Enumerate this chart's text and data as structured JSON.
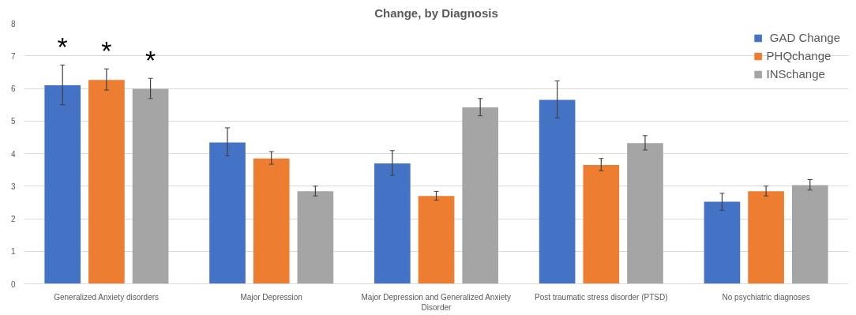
{
  "chart_data": {
    "type": "bar",
    "title": "Change, by Diagnosis",
    "categories": [
      "Generalized Anxiety disorders",
      "Major Depression",
      "Major Depression and Generalized Anxiety Disorder",
      "Post traumatic stress disorder (PTSD)",
      "No psychiatric diagnoses"
    ],
    "series": [
      {
        "name": " GAD Change",
        "color": "#4472c4",
        "values": [
          6.1,
          4.34,
          3.7,
          5.65,
          2.52
        ],
        "errors": [
          [
            5.5,
            6.72
          ],
          [
            3.93,
            4.79
          ],
          [
            3.33,
            4.09
          ],
          [
            5.09,
            6.23
          ],
          [
            2.26,
            2.78
          ]
        ]
      },
      {
        "name": "PHQchange",
        "color": "#ed7d31",
        "values": [
          6.26,
          3.85,
          2.7,
          3.65,
          2.84
        ],
        "errors": [
          [
            5.95,
            6.6
          ],
          [
            3.67,
            4.06
          ],
          [
            2.57,
            2.84
          ],
          [
            3.47,
            3.85
          ],
          [
            2.7,
            3.0
          ]
        ]
      },
      {
        "name": "INSchange",
        "color": "#a5a5a5",
        "values": [
          5.99,
          2.84,
          5.42,
          4.32,
          3.03
        ],
        "errors": [
          [
            5.69,
            6.31
          ],
          [
            2.7,
            3.0
          ],
          [
            5.16,
            5.69
          ],
          [
            4.11,
            4.55
          ],
          [
            2.88,
            3.2
          ]
        ]
      }
    ],
    "annotations": [
      "*",
      "*",
      "*"
    ],
    "ylim": [
      0,
      8
    ],
    "yticks": [
      0,
      1,
      2,
      3,
      4,
      5,
      6,
      7,
      8
    ],
    "grid": "y",
    "legend": "top right"
  }
}
